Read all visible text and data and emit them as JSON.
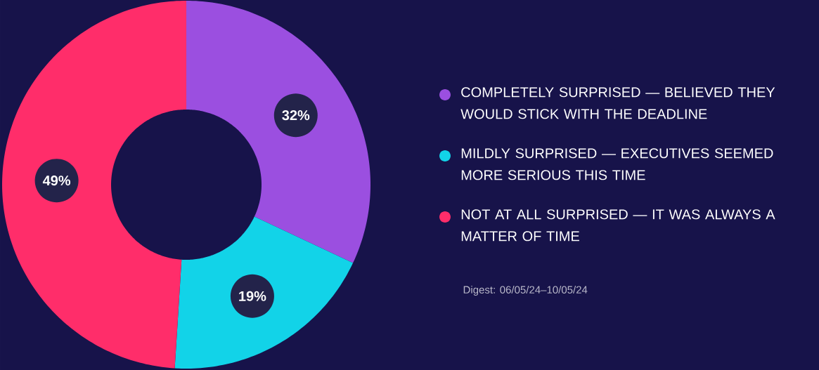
{
  "chart_data": {
    "type": "donut",
    "categories": [
      "COMPLETELY SURPRISED — BELIEVED THEY WOULD STICK WITH THE DEADLINE",
      "MILDLY SURPRISED — EXECUTIVES SEEMED MORE SERIOUS THIS TIME",
      "NOT AT ALL SURPRISED — IT WAS ALWAYS A MATTER OF TIME"
    ],
    "values": [
      32,
      19,
      49
    ],
    "colors": [
      "#9b4fe0",
      "#12d3e8",
      "#ff2d6a"
    ],
    "value_labels": [
      "32%",
      "19%",
      "49%"
    ],
    "legend": "right",
    "annotations": [
      "Digest: 06/05/24–10/05/24"
    ]
  }
}
